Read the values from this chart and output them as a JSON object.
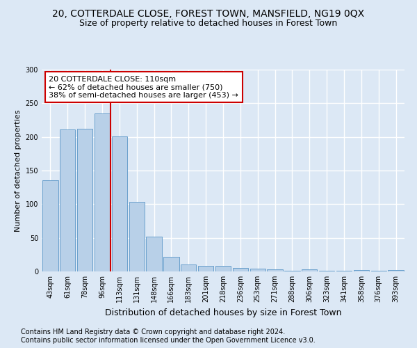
{
  "title": "20, COTTERDALE CLOSE, FOREST TOWN, MANSFIELD, NG19 0QX",
  "subtitle": "Size of property relative to detached houses in Forest Town",
  "xlabel": "Distribution of detached houses by size in Forest Town",
  "ylabel": "Number of detached properties",
  "footnote1": "Contains HM Land Registry data © Crown copyright and database right 2024.",
  "footnote2": "Contains public sector information licensed under the Open Government Licence v3.0.",
  "bar_labels": [
    "43sqm",
    "61sqm",
    "78sqm",
    "96sqm",
    "113sqm",
    "131sqm",
    "148sqm",
    "166sqm",
    "183sqm",
    "201sqm",
    "218sqm",
    "236sqm",
    "253sqm",
    "271sqm",
    "288sqm",
    "306sqm",
    "323sqm",
    "341sqm",
    "358sqm",
    "376sqm",
    "393sqm"
  ],
  "bar_values": [
    136,
    211,
    212,
    235,
    201,
    103,
    52,
    22,
    10,
    8,
    8,
    5,
    4,
    3,
    1,
    3,
    1,
    1,
    2,
    1,
    2
  ],
  "bar_color": "#b8d0e8",
  "bar_edge_color": "#6aa0cc",
  "vline_color": "#cc0000",
  "vline_x": 3.5,
  "annotation_text": "20 COTTERDALE CLOSE: 110sqm\n← 62% of detached houses are smaller (750)\n38% of semi-detached houses are larger (453) →",
  "annotation_box_color": "#ffffff",
  "annotation_box_edge_color": "#cc0000",
  "ylim": [
    0,
    300
  ],
  "yticks": [
    0,
    50,
    100,
    150,
    200,
    250,
    300
  ],
  "background_color": "#dce8f5",
  "grid_color": "#ffffff",
  "title_fontsize": 10,
  "subtitle_fontsize": 9,
  "xlabel_fontsize": 9,
  "ylabel_fontsize": 8,
  "tick_fontsize": 7,
  "annotation_fontsize": 8,
  "footnote_fontsize": 7
}
